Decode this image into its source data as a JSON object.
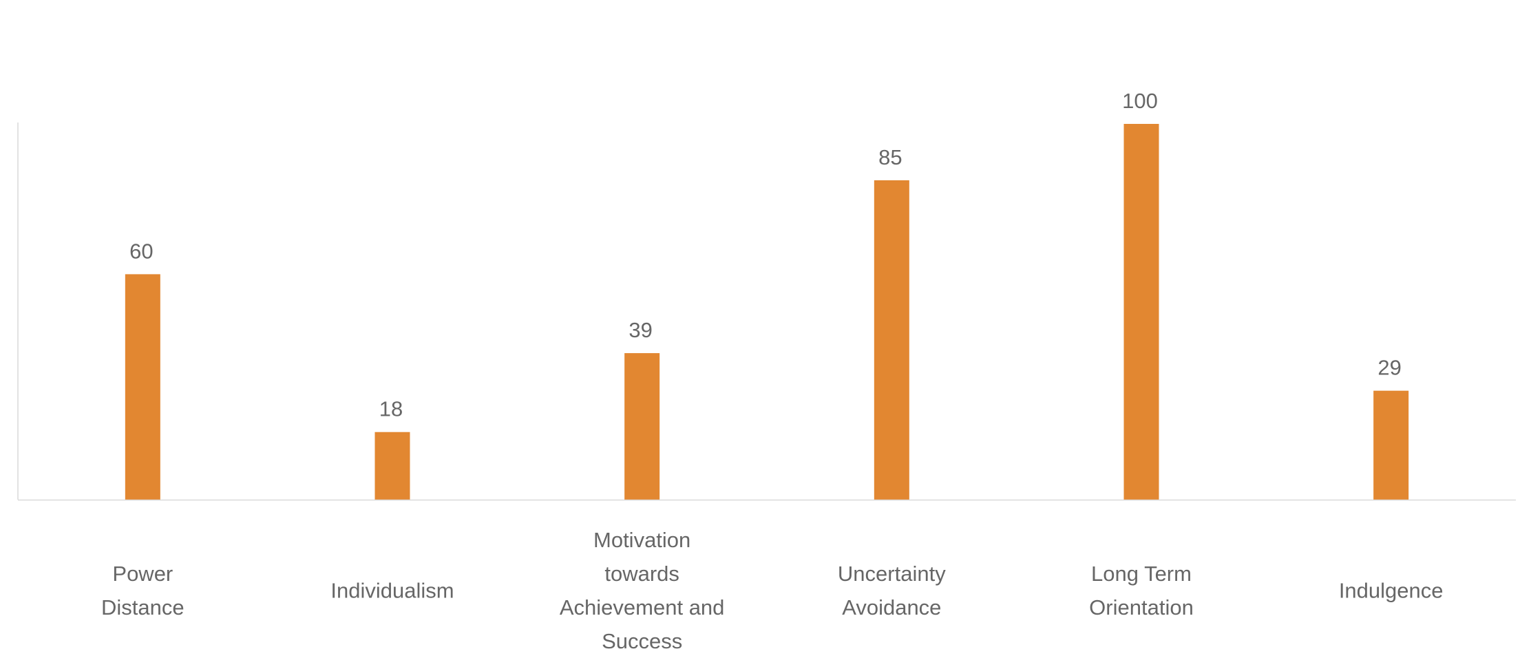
{
  "chart_data": {
    "type": "bar",
    "categories": [
      [
        "Power",
        "Distance"
      ],
      [
        "Individualism"
      ],
      [
        "Motivation",
        "towards",
        "Achievement and",
        "Success"
      ],
      [
        "Uncertainty",
        "Avoidance"
      ],
      [
        "Long Term",
        "Orientation"
      ],
      [
        "Indulgence"
      ]
    ],
    "values": [
      60,
      18,
      39,
      85,
      100,
      29
    ],
    "value_labels": [
      "60",
      "18",
      "39",
      "85",
      "100",
      "29"
    ],
    "ylim": [
      0,
      100
    ],
    "grid": false,
    "legend": "none",
    "colors": {
      "bar": "#E28731",
      "axis": "#D9D9D9",
      "text": "#666666"
    }
  }
}
